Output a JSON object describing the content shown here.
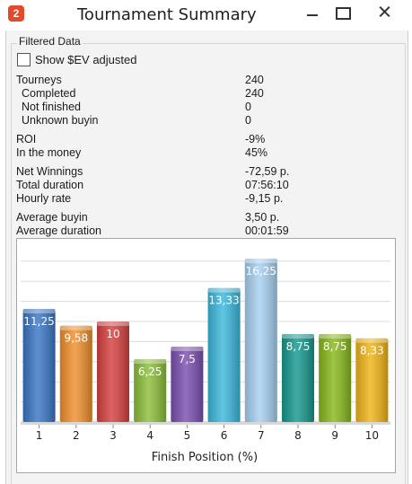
{
  "window": {
    "app_icon_text": "2",
    "title": "Tournament Summary"
  },
  "group": {
    "label": "Filtered Data"
  },
  "sev_checkbox": {
    "label": "Show $EV adjusted",
    "checked": false
  },
  "stats": {
    "tourneys": {
      "label": "Tourneys",
      "value": "240"
    },
    "completed": {
      "label": "Completed",
      "value": "240"
    },
    "not_finished": {
      "label": "Not finished",
      "value": "0"
    },
    "unknown_buyin": {
      "label": "Unknown buyin",
      "value": "0"
    },
    "roi": {
      "label": "ROI",
      "value": "-9%"
    },
    "itm": {
      "label": "In the money",
      "value": "45%"
    },
    "net_winnings": {
      "label": "Net Winnings",
      "value": "-72,59 p."
    },
    "total_duration": {
      "label": "Total duration",
      "value": "07:56:10"
    },
    "hourly_rate": {
      "label": "Hourly rate",
      "value": "-9,15 p."
    },
    "avg_buyin": {
      "label": "Average buyin",
      "value": "3,50 p."
    },
    "avg_duration": {
      "label": "Average duration",
      "value": "00:01:59"
    }
  },
  "chart_data": {
    "type": "bar",
    "categories": [
      "1",
      "2",
      "3",
      "4",
      "5",
      "6",
      "7",
      "8",
      "9",
      "10"
    ],
    "values": [
      11.25,
      9.58,
      10,
      6.25,
      7.5,
      13.33,
      16.25,
      8.75,
      8.75,
      8.33
    ],
    "data_labels": [
      "11,25",
      "9,58",
      "10",
      "6,25",
      "7,5",
      "13,33",
      "16,25",
      "8,75",
      "8,75",
      "8,33"
    ],
    "colors": [
      "#3a76c4",
      "#f0902c",
      "#d64040",
      "#8cbe3c",
      "#7b4fb0",
      "#3cb8dc",
      "#a8d0f0",
      "#16988e",
      "#88b81c",
      "#f0b416"
    ],
    "xlabel": "Finish Position (%)",
    "ylim": [
      0,
      17.5
    ],
    "grid": true
  }
}
